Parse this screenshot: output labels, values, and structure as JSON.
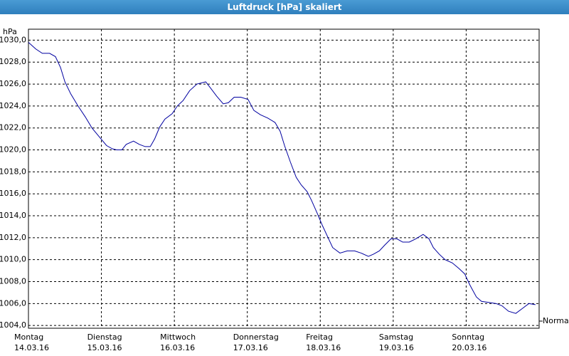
{
  "chart_data": {
    "type": "line",
    "title": "Luftdruck [hPa] skaliert",
    "y_label": "hPa",
    "xlim": [
      0,
      7
    ],
    "ylim": [
      1003.75,
      1031
    ],
    "xticks": [
      {
        "value": 0,
        "label": "Montag\n14.03.16"
      },
      {
        "value": 1,
        "label": "Dienstag\n15.03.16"
      },
      {
        "value": 2,
        "label": "Mittwoch\n16.03.16"
      },
      {
        "value": 3,
        "label": "Donnerstag\n17.03.16"
      },
      {
        "value": 4,
        "label": "Freitag\n18.03.16"
      },
      {
        "value": 5,
        "label": "Samstag\n19.03.16"
      },
      {
        "value": 6,
        "label": "Sonntag\n20.03.16"
      }
    ],
    "yticks": [
      {
        "value": 1004,
        "label": "1004,0"
      },
      {
        "value": 1006,
        "label": "1006,0"
      },
      {
        "value": 1008,
        "label": "1008,0"
      },
      {
        "value": 1010,
        "label": "1010,0"
      },
      {
        "value": 1012,
        "label": "1012,0"
      },
      {
        "value": 1014,
        "label": "1014,0"
      },
      {
        "value": 1016,
        "label": "1016,0"
      },
      {
        "value": 1018,
        "label": "1018,0"
      },
      {
        "value": 1020,
        "label": "1020,0"
      },
      {
        "value": 1022,
        "label": "1022,0"
      },
      {
        "value": 1024,
        "label": "1024,0"
      },
      {
        "value": 1026,
        "label": "1026,0"
      },
      {
        "value": 1028,
        "label": "1028,0"
      },
      {
        "value": 1030,
        "label": "1030,0"
      }
    ],
    "grid": true,
    "reference": {
      "label": "Normal",
      "value": 1004.4
    },
    "x": [
      0,
      0.1,
      0.19,
      0.29,
      0.37,
      0.44,
      0.5,
      0.58,
      0.68,
      0.78,
      0.87,
      0.97,
      1.07,
      1.15,
      1.21,
      1.28,
      1.34,
      1.44,
      1.52,
      1.6,
      1.67,
      1.73,
      1.8,
      1.87,
      1.97,
      2.04,
      2.12,
      2.21,
      2.31,
      2.43,
      2.5,
      2.58,
      2.67,
      2.74,
      2.82,
      2.91,
      3.01,
      3.09,
      3.18,
      3.28,
      3.38,
      3.45,
      3.51,
      3.59,
      3.67,
      3.74,
      3.82,
      3.88,
      3.96,
      4.03,
      4.1,
      4.17,
      4.27,
      4.37,
      4.47,
      4.56,
      4.66,
      4.73,
      4.81,
      4.88,
      4.97,
      5.05,
      5.13,
      5.22,
      5.31,
      5.41,
      5.49,
      5.55,
      5.63,
      5.71,
      5.81,
      5.9,
      5.98,
      6.05,
      6.14,
      6.21,
      6.31,
      6.41,
      6.49,
      6.58,
      6.68,
      6.78,
      6.86,
      6.95
    ],
    "series": [
      {
        "color": "#0000a0",
        "values": [
          1029.8,
          1029.2,
          1028.8,
          1028.8,
          1028.5,
          1027.5,
          1026.2,
          1025.1,
          1024.0,
          1023.0,
          1022.0,
          1021.2,
          1020.4,
          1020.1,
          1020.0,
          1020.0,
          1020.5,
          1020.8,
          1020.5,
          1020.3,
          1020.3,
          1021.0,
          1022.1,
          1022.8,
          1023.3,
          1024.0,
          1024.5,
          1025.4,
          1026.0,
          1026.2,
          1025.6,
          1024.9,
          1024.2,
          1024.3,
          1024.8,
          1024.8,
          1024.6,
          1023.6,
          1023.2,
          1022.9,
          1022.5,
          1021.7,
          1020.4,
          1018.9,
          1017.5,
          1016.8,
          1016.2,
          1015.4,
          1014.2,
          1013.1,
          1012.1,
          1011.1,
          1010.6,
          1010.8,
          1010.8,
          1010.6,
          1010.3,
          1010.5,
          1010.8,
          1011.3,
          1011.9,
          1011.9,
          1011.6,
          1011.6,
          1011.9,
          1012.3,
          1011.9,
          1011.1,
          1010.5,
          1010.0,
          1009.7,
          1009.2,
          1008.7,
          1007.7,
          1006.6,
          1006.2,
          1006.1,
          1006.0,
          1005.8,
          1005.3,
          1005.1,
          1005.6,
          1006.0,
          1005.9
        ]
      }
    ]
  }
}
